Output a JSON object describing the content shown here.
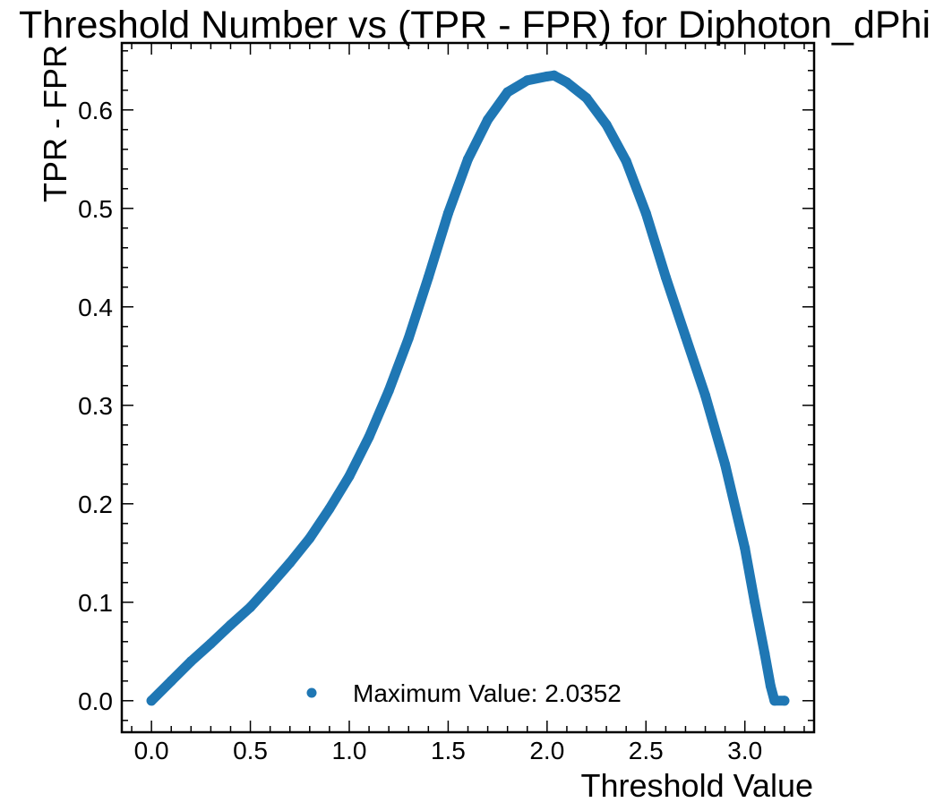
{
  "chart_data": {
    "type": "scatter",
    "title": "Threshold Number vs (TPR - FPR) for Diphoton_dPhi",
    "xlabel": "Threshold Value",
    "ylabel": "TPR - FPR",
    "xlim": [
      -0.15,
      3.35
    ],
    "ylim": [
      -0.032,
      0.668
    ],
    "xticks": [
      0.0,
      0.5,
      1.0,
      1.5,
      2.0,
      2.5,
      3.0
    ],
    "xtick_labels": [
      "0.0",
      "0.5",
      "1.0",
      "1.5",
      "2.0",
      "2.5",
      "3.0"
    ],
    "yticks": [
      0.0,
      0.1,
      0.2,
      0.3,
      0.4,
      0.5,
      0.6
    ],
    "ytick_labels": [
      "0.0",
      "0.1",
      "0.2",
      "0.3",
      "0.4",
      "0.5",
      "0.6"
    ],
    "grid": false,
    "legend_position": "bottom-center",
    "marker_color": "#1f77b4",
    "series": [
      {
        "name": "Maximum Value: 2.0352",
        "x": [
          0.0,
          0.1,
          0.2,
          0.3,
          0.4,
          0.5,
          0.6,
          0.7,
          0.8,
          0.9,
          1.0,
          1.1,
          1.2,
          1.3,
          1.4,
          1.5,
          1.6,
          1.7,
          1.8,
          1.9,
          2.0,
          2.0352,
          2.1,
          2.2,
          2.3,
          2.4,
          2.5,
          2.6,
          2.7,
          2.8,
          2.9,
          3.0,
          3.05,
          3.1,
          3.13,
          3.15,
          3.2
        ],
        "y": [
          0.0,
          0.02,
          0.04,
          0.058,
          0.077,
          0.095,
          0.117,
          0.14,
          0.165,
          0.195,
          0.228,
          0.268,
          0.315,
          0.368,
          0.43,
          0.495,
          0.55,
          0.59,
          0.618,
          0.63,
          0.634,
          0.635,
          0.628,
          0.612,
          0.585,
          0.548,
          0.495,
          0.43,
          0.37,
          0.31,
          0.24,
          0.155,
          0.1,
          0.048,
          0.015,
          0.0,
          0.0
        ]
      }
    ]
  }
}
